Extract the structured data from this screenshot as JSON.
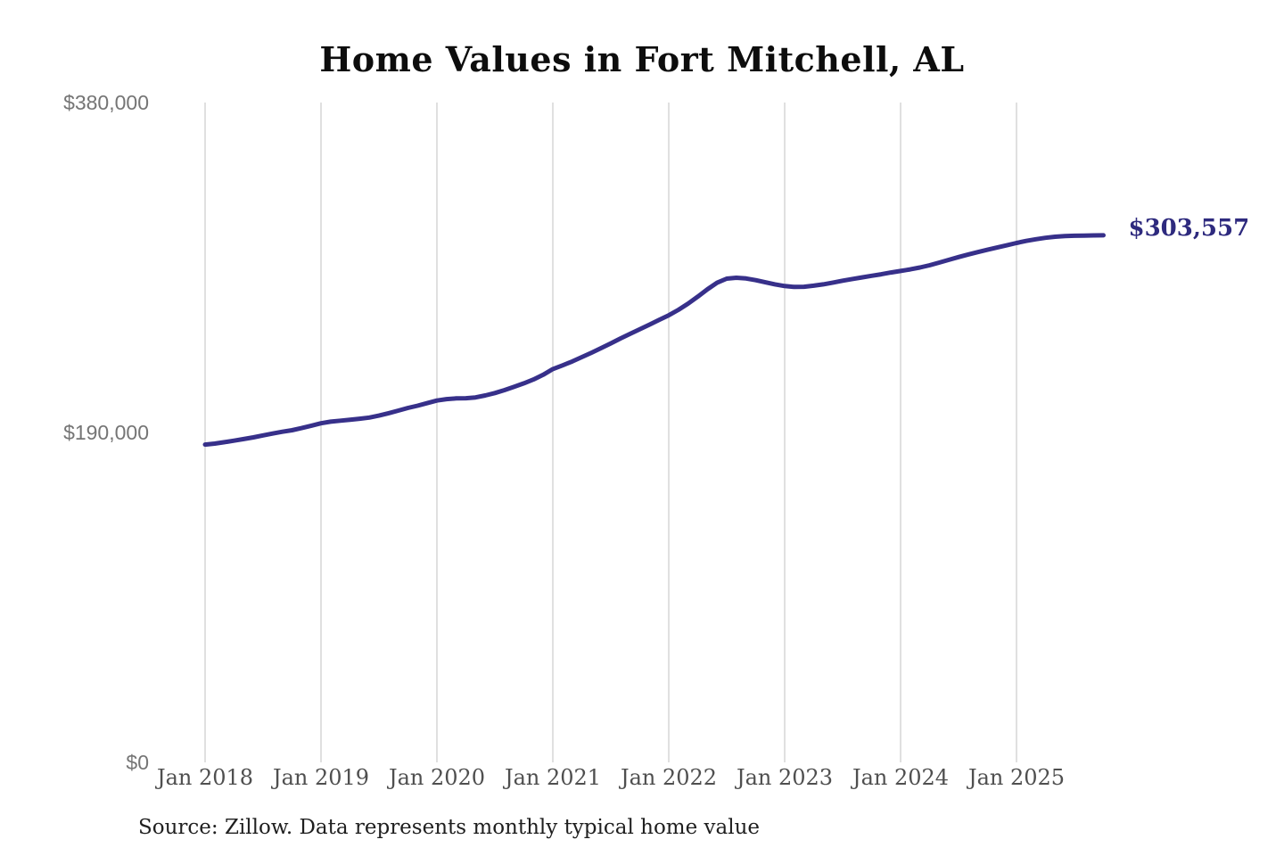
{
  "title": "Home Values in Fort Mitchell, AL",
  "annotation": {
    "label": "$303,557"
  },
  "source_note": "Source: Zillow. Data represents monthly typical home value",
  "colors": {
    "background": "#ffffff",
    "line": "#37308a",
    "annotation_text": "#2e2a7e",
    "gridline": "#cccccc",
    "y_tick_text": "#757575",
    "x_tick_text": "#4f4f4f",
    "title_text": "#0d0d0d",
    "source_text": "#1f1f1f"
  },
  "chart_data": {
    "type": "line",
    "title": "Home Values in Fort Mitchell, AL",
    "xlabel": "",
    "ylabel": "",
    "ylim": [
      0,
      380000
    ],
    "grid": "vertical-only",
    "legend": "none",
    "final_value_label": "$303,557",
    "y_ticks": [
      {
        "label": "$0",
        "value": 0
      },
      {
        "label": "$190,000",
        "value": 190000
      },
      {
        "label": "$380,000",
        "value": 380000
      }
    ],
    "x_tick_labels": [
      "Jan 2018",
      "Jan 2019",
      "Jan 2020",
      "Jan 2021",
      "Jan 2022",
      "Jan 2023",
      "Jan 2024",
      "Jan 2025"
    ],
    "x_tick_indices": [
      0,
      12,
      24,
      36,
      48,
      60,
      72,
      84
    ],
    "x": [
      "2018-01",
      "2018-02",
      "2018-03",
      "2018-04",
      "2018-05",
      "2018-06",
      "2018-07",
      "2018-08",
      "2018-09",
      "2018-10",
      "2018-11",
      "2018-12",
      "2019-01",
      "2019-02",
      "2019-03",
      "2019-04",
      "2019-05",
      "2019-06",
      "2019-07",
      "2019-08",
      "2019-09",
      "2019-10",
      "2019-11",
      "2019-12",
      "2020-01",
      "2020-02",
      "2020-03",
      "2020-04",
      "2020-05",
      "2020-06",
      "2020-07",
      "2020-08",
      "2020-09",
      "2020-10",
      "2020-11",
      "2020-12",
      "2021-01",
      "2021-02",
      "2021-03",
      "2021-04",
      "2021-05",
      "2021-06",
      "2021-07",
      "2021-08",
      "2021-09",
      "2021-10",
      "2021-11",
      "2021-12",
      "2022-01",
      "2022-02",
      "2022-03",
      "2022-04",
      "2022-05",
      "2022-06",
      "2022-07",
      "2022-08",
      "2022-09",
      "2022-10",
      "2022-11",
      "2022-12",
      "2023-01",
      "2023-02",
      "2023-03",
      "2023-04",
      "2023-05",
      "2023-06",
      "2023-07",
      "2023-08",
      "2023-09",
      "2023-10",
      "2023-11",
      "2023-12",
      "2024-01",
      "2024-02",
      "2024-03",
      "2024-04",
      "2024-05",
      "2024-06",
      "2024-07",
      "2024-08",
      "2024-09",
      "2024-10",
      "2024-11",
      "2024-12",
      "2025-01",
      "2025-02",
      "2025-03",
      "2025-04",
      "2025-05",
      "2025-06",
      "2025-07",
      "2025-08",
      "2025-09",
      "2025-10"
    ],
    "values": [
      183000,
      183600,
      184400,
      185300,
      186200,
      187200,
      188300,
      189400,
      190400,
      191300,
      192500,
      193900,
      195300,
      196200,
      196800,
      197300,
      197900,
      198600,
      199700,
      201100,
      202600,
      204100,
      205400,
      206900,
      208400,
      209200,
      209600,
      209700,
      210200,
      211300,
      212700,
      214400,
      216300,
      218300,
      220500,
      223200,
      226500,
      228600,
      230900,
      233400,
      235900,
      238600,
      241300,
      244100,
      246800,
      249400,
      252100,
      254800,
      257500,
      260600,
      264200,
      268200,
      272400,
      276200,
      278600,
      279100,
      278700,
      277700,
      276500,
      275300,
      274300,
      273800,
      273900,
      274500,
      275300,
      276300,
      277400,
      278400,
      279300,
      280200,
      281100,
      282100,
      283000,
      283900,
      285000,
      286300,
      287800,
      289400,
      291000,
      292500,
      293900,
      295200,
      296500,
      297800,
      299100,
      300300,
      301300,
      302100,
      302700,
      303100,
      303300,
      303400,
      303500,
      303557
    ]
  }
}
